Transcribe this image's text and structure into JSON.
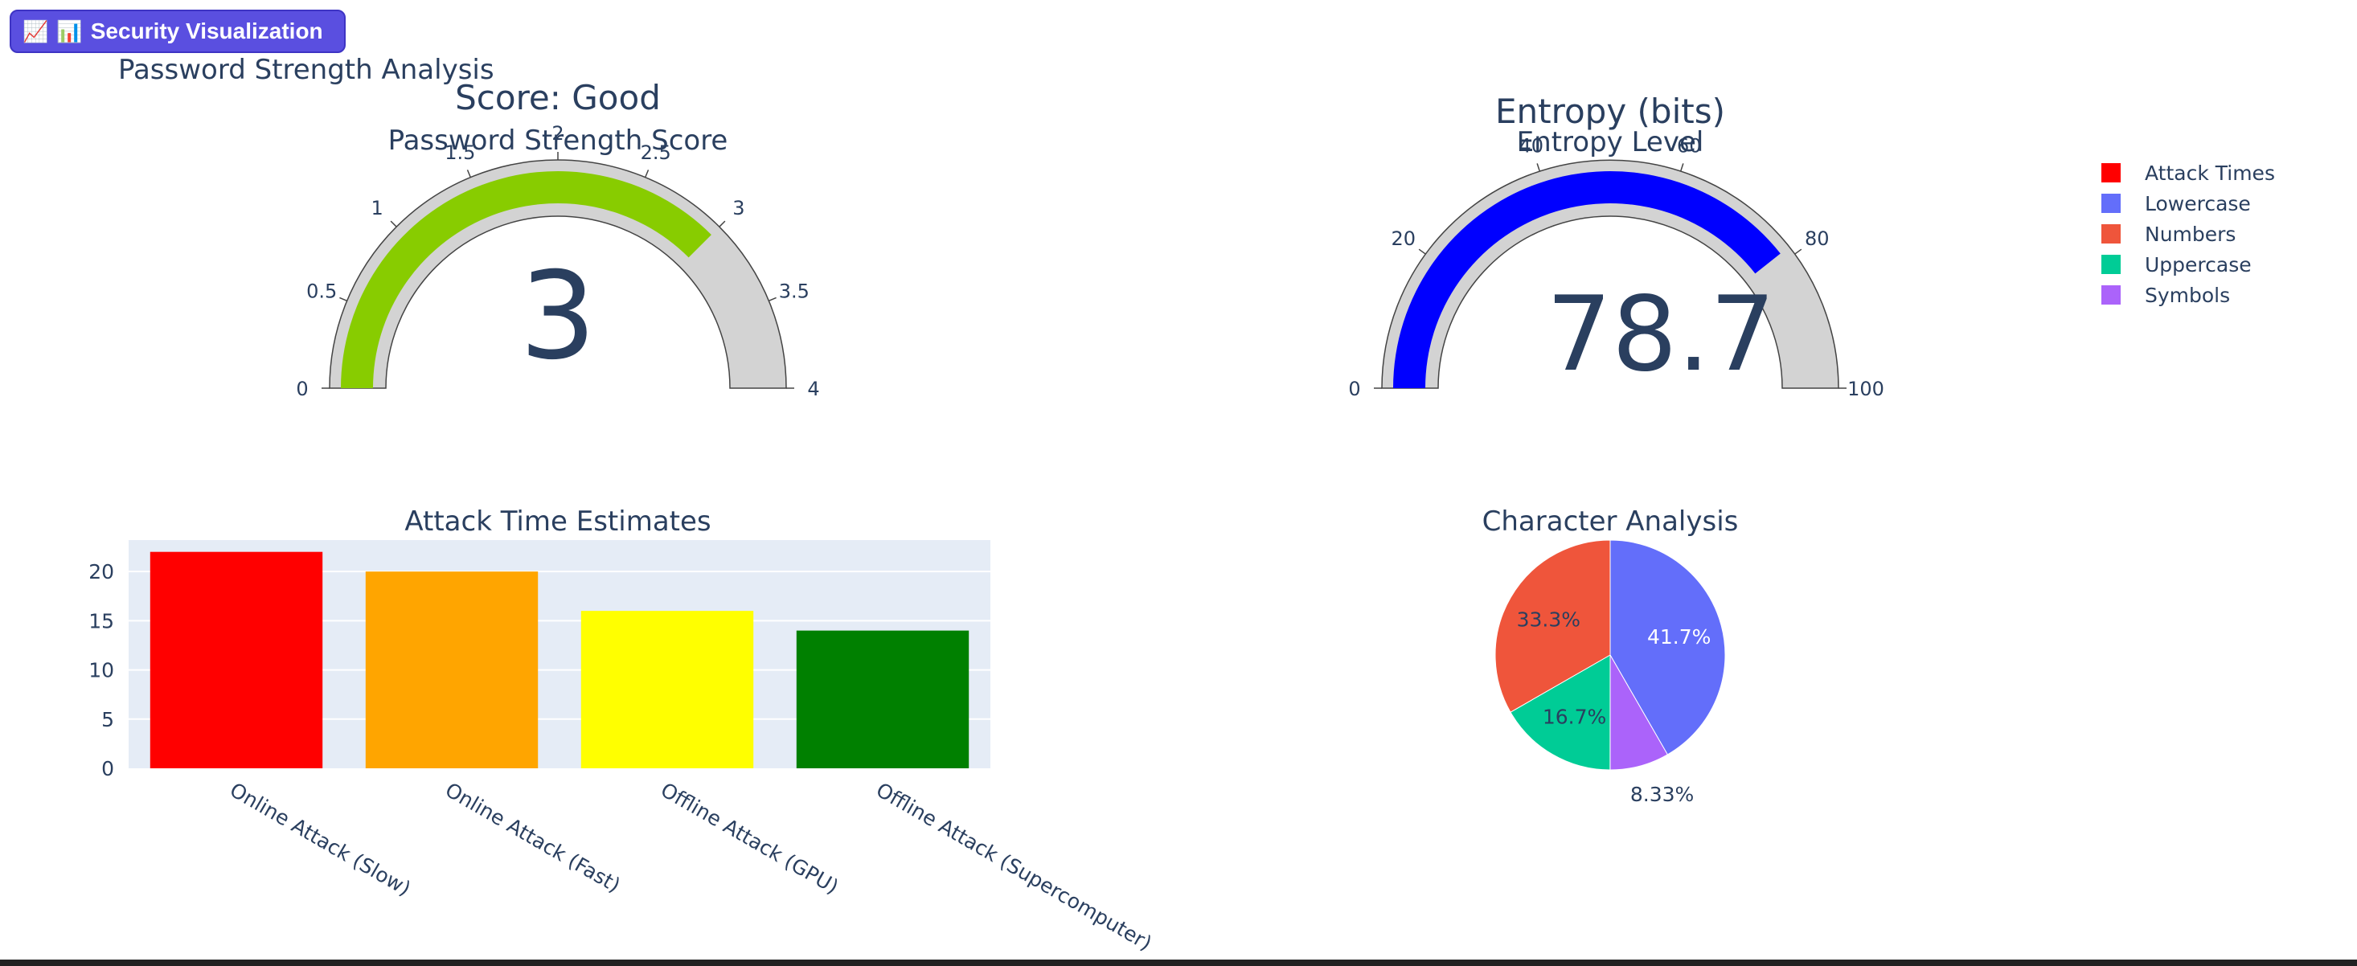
{
  "button": {
    "icon_left": "📈",
    "icon_chart": "📊",
    "label": "Security Visualization"
  },
  "page_title": "Password Strength Analysis",
  "colors": {
    "button_bg": "#5a4fe0"
  },
  "chart_data": [
    {
      "type": "gauge",
      "title": "Score: Good",
      "subtitle": "Password Strength Score",
      "value": 3,
      "display_value": "3",
      "range": [
        0,
        4
      ],
      "ticks": [
        "0",
        "0.5",
        "1",
        "1.5",
        "2",
        "2.5",
        "3",
        "3.5",
        "4"
      ],
      "bar_color": "#88cc00",
      "track_color": "#d3d3d3"
    },
    {
      "type": "gauge",
      "title": "Entropy (bits)",
      "subtitle": "Entropy Level",
      "value": 78.7,
      "display_value": "78.7",
      "range": [
        0,
        100
      ],
      "ticks": [
        "0",
        "20",
        "40",
        "60",
        "80",
        "100"
      ],
      "bar_color": "#0000ff",
      "track_color": "#d3d3d3"
    },
    {
      "type": "bar",
      "title": "Attack Time Estimates",
      "categories": [
        "Online Attack (Slow)",
        "Online Attack (Fast)",
        "Offline Attack (GPU)",
        "Offline Attack (Supercomputer)"
      ],
      "values": [
        22,
        20,
        16,
        14
      ],
      "colors": [
        "#ff0000",
        "#ffa500",
        "#ffff00",
        "#008000"
      ],
      "ylim": [
        0,
        23.2
      ],
      "yticks": [
        "0",
        "5",
        "10",
        "15",
        "20"
      ],
      "grid": true,
      "plot_bg": "#e5ecf6"
    },
    {
      "type": "pie",
      "title": "Character Analysis",
      "slices": [
        {
          "label": "Lowercase",
          "value": 41.7,
          "text": "41.7%",
          "color": "#636efa"
        },
        {
          "label": "Symbols",
          "value": 8.33,
          "text": "8.33%",
          "color": "#ab63fa"
        },
        {
          "label": "Uppercase",
          "value": 16.7,
          "text": "16.7%",
          "color": "#00cc96"
        },
        {
          "label": "Numbers",
          "value": 33.3,
          "text": "33.3%",
          "color": "#ef553b"
        }
      ]
    }
  ],
  "legend": {
    "placement": "top-right",
    "items": [
      {
        "label": "Attack Times",
        "color": "#ff0000"
      },
      {
        "label": "Lowercase",
        "color": "#636efa"
      },
      {
        "label": "Numbers",
        "color": "#ef553b"
      },
      {
        "label": "Uppercase",
        "color": "#00cc96"
      },
      {
        "label": "Symbols",
        "color": "#ab63fa"
      }
    ]
  }
}
